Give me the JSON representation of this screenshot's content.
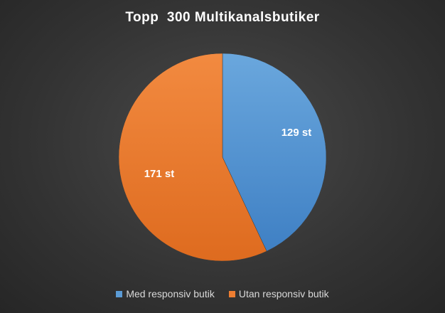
{
  "chart_data": {
    "type": "pie",
    "title": "Topp  300 Multikanalsbutiker",
    "slices": [
      {
        "name": "Med responsiv butik",
        "value": 129,
        "label": "129 st",
        "color": "#5b9bd5"
      },
      {
        "name": "Utan responsiv butik",
        "value": 171,
        "label": "171 st",
        "color": "#ed7d31"
      }
    ],
    "legend_position": "bottom"
  }
}
